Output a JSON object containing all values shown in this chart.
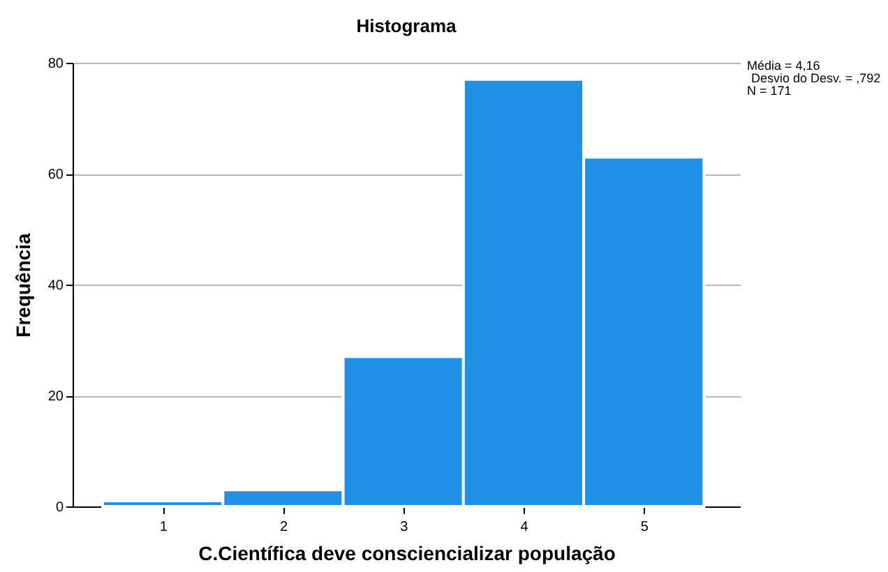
{
  "chart_data": {
    "type": "histogram",
    "title": "Histograma",
    "xlabel": "C.Científica deve consciencializar população",
    "ylabel": "Frequência",
    "bins": [
      0.5,
      1.5,
      2.5,
      3.5,
      4.5,
      5.5
    ],
    "values": [
      1,
      3,
      27,
      77,
      63
    ],
    "color": "#1f90e6",
    "xlim": [
      0.25,
      5.8
    ],
    "xticks": [
      1,
      2,
      3,
      4,
      5
    ],
    "ylim": [
      0,
      80
    ],
    "yticks": [
      0,
      20,
      40,
      60,
      80
    ],
    "grid": "y",
    "annotations": [
      "Média = 4,16",
      "Desvio do Desv. = ,792",
      "N = 171"
    ]
  }
}
